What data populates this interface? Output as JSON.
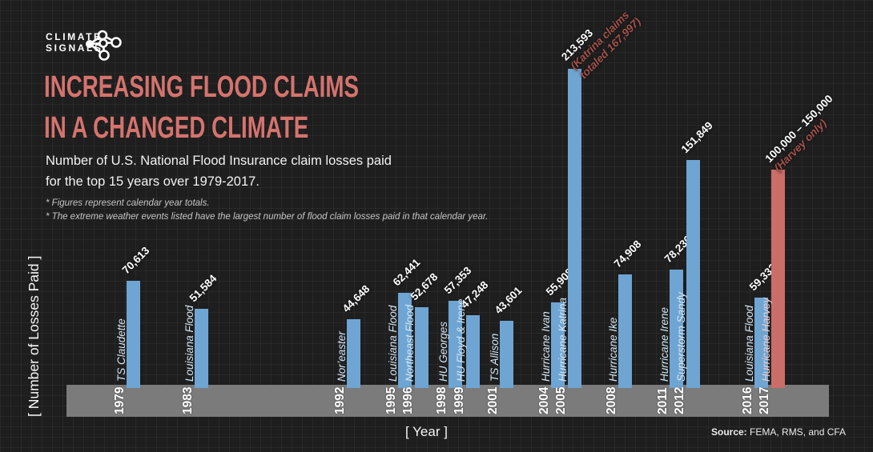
{
  "header": {
    "logo_line1": "CLIMATE",
    "logo_line2": "SIGNALS",
    "logo_icon": "climate-signals-network-icon",
    "title_line1": "INCREASING FLOOD CLAIMS",
    "title_line2": "IN A CHANGED CLIMATE",
    "subtitle_line1": "Number of U.S. National Flood Insurance claim losses paid",
    "subtitle_line2": "for the top 15 years over 1979-2017.",
    "footnote1": "* Figures represent calendar year totals.",
    "footnote2": "* The extreme weather events listed have the largest number of flood claim losses paid in that calendar year."
  },
  "footer": {
    "source_label": "Source:",
    "source_text": " FEMA, RMS, and CFA"
  },
  "chart_data": {
    "type": "bar",
    "title": "Increasing Flood Claims in a Changed Climate",
    "xlabel": "[ Year ]",
    "ylabel": "[ Number of Losses Paid ]",
    "x_range": [
      1979,
      2017
    ],
    "ylim": [
      0,
      220000
    ],
    "grid": true,
    "legend": "none",
    "colors": {
      "blue": "#6fa5d2",
      "red": "#cb6d68",
      "event_blue": "#d4e7f4",
      "event_red": "#f2cdc9",
      "annotation": "#a4524b",
      "title_accent": "#d5736e",
      "axis_band": "#7b7b7b",
      "background": "#1e1e1e"
    },
    "bars": [
      {
        "year": "1979",
        "event": "TS Claudette",
        "value": 70613,
        "label": "70,613",
        "color": "blue"
      },
      {
        "year": "1983",
        "event": "Louisiana Flood",
        "value": 51584,
        "label": "51,584",
        "color": "blue"
      },
      {
        "year": "1992",
        "event": "Nor’easter",
        "value": 44648,
        "label": "44,648",
        "color": "blue"
      },
      {
        "year": "1995",
        "event": "Louisiana Flood",
        "value": 62441,
        "label": "62,441",
        "color": "blue"
      },
      {
        "year": "1996",
        "event": "Northeast Flood",
        "value": 52678,
        "label": "52,678",
        "color": "blue"
      },
      {
        "year": "1998",
        "event": "HU Georges",
        "value": 57353,
        "label": "57,353",
        "color": "blue"
      },
      {
        "year": "1999",
        "event": "HU Floyd & Irene",
        "value": 47248,
        "label": "47,248",
        "color": "blue"
      },
      {
        "year": "2001",
        "event": "TS Allison",
        "value": 43601,
        "label": "43,601",
        "color": "blue"
      },
      {
        "year": "2004",
        "event": "Hurricane Ivan",
        "value": 55908,
        "label": "55,908",
        "color": "blue"
      },
      {
        "year": "2005",
        "event": "Hurricane Katrina",
        "value": 213593,
        "label": "213,593",
        "color": "blue",
        "annotation": [
          "(Katrina claims",
          "totaled 167,997)"
        ]
      },
      {
        "year": "2008",
        "event": "Hurricane Ike",
        "value": 74908,
        "label": "74,908",
        "color": "blue"
      },
      {
        "year": "2011",
        "event": "Hurricane Irene",
        "value": 78236,
        "label": "78,236",
        "color": "blue"
      },
      {
        "year": "2012",
        "event": "Superstorm Sandy",
        "value": 151849,
        "label": "151,849",
        "color": "blue"
      },
      {
        "year": "2016",
        "event": "Louisiana Flood",
        "value": 59332,
        "label": "59,332",
        "color": "blue"
      },
      {
        "year": "2017",
        "event": "Hurricane Harvey",
        "value": null,
        "value_range": [
          100000,
          150000
        ],
        "display_value": 145500,
        "label": "100,000 – 150,000",
        "color": "red",
        "annotation": [
          "(Harvey only)"
        ]
      }
    ]
  }
}
